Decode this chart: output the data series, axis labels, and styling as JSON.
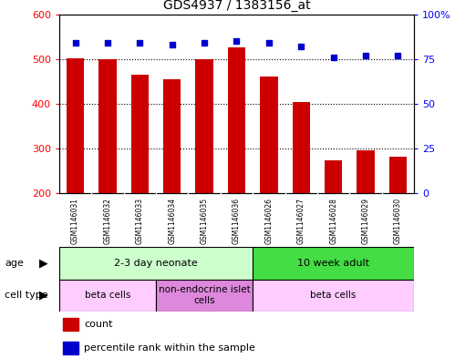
{
  "title": "GDS4937 / 1383156_at",
  "samples": [
    "GSM1146031",
    "GSM1146032",
    "GSM1146033",
    "GSM1146034",
    "GSM1146035",
    "GSM1146036",
    "GSM1146026",
    "GSM1146027",
    "GSM1146028",
    "GSM1146029",
    "GSM1146030"
  ],
  "counts": [
    502,
    500,
    465,
    455,
    500,
    527,
    460,
    403,
    274,
    296,
    282
  ],
  "percentiles": [
    84,
    84,
    84,
    83,
    84,
    85,
    84,
    82,
    76,
    77,
    77
  ],
  "ymin": 200,
  "ymax": 600,
  "yticks": [
    200,
    300,
    400,
    500,
    600
  ],
  "y2ticks": [
    0,
    25,
    50,
    75,
    100
  ],
  "y2tick_labels": [
    "0",
    "25",
    "50",
    "75",
    "100%"
  ],
  "bar_color": "#cc0000",
  "dot_color": "#0000cc",
  "bar_width": 0.55,
  "age_groups": [
    {
      "label": "2-3 day neonate",
      "start": 0,
      "end": 6,
      "color": "#ccffcc"
    },
    {
      "label": "10 week adult",
      "start": 6,
      "end": 11,
      "color": "#44dd44"
    }
  ],
  "cell_type_groups": [
    {
      "label": "beta cells",
      "start": 0,
      "end": 3,
      "color": "#ffccff"
    },
    {
      "label": "non-endocrine islet\ncells",
      "start": 3,
      "end": 6,
      "color": "#dd88dd"
    },
    {
      "label": "beta cells",
      "start": 6,
      "end": 11,
      "color": "#ffccff"
    }
  ],
  "age_label": "age",
  "cell_type_label": "cell type",
  "legend_count_label": "count",
  "legend_pct_label": "percentile rank within the sample",
  "background_color": "#ffffff",
  "plot_bg_color": "#ffffff",
  "sample_bg_color": "#cccccc",
  "border_color": "#000000"
}
